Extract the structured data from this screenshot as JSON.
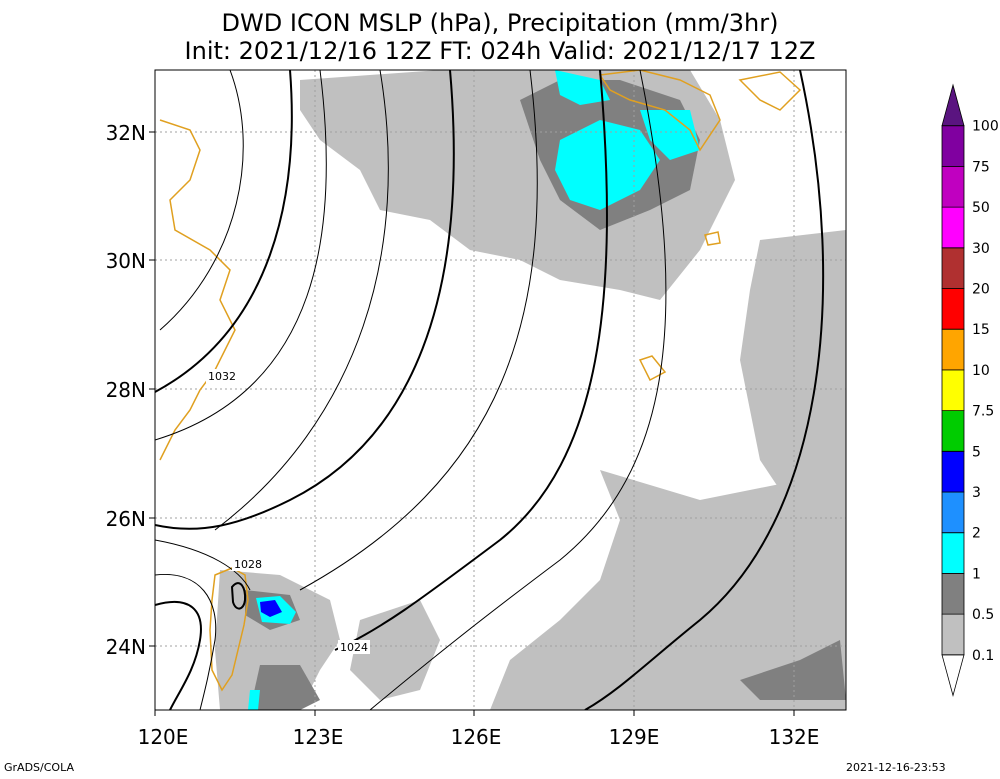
{
  "title_line1": "DWD ICON MSLP (hPa), Precipitation (mm/3hr)",
  "title_line2": "Init: 2021/12/16 12Z  FT: 024h  Valid: 2021/12/17 12Z",
  "lat_labels": [
    "32N",
    "30N",
    "28N",
    "26N",
    "24N"
  ],
  "lon_labels": [
    "120E",
    "123E",
    "126E",
    "129E",
    "132E"
  ],
  "isobar_labels": [
    "1032",
    "1028",
    "1024"
  ],
  "colorbar": {
    "labels": [
      "0.1",
      "0.5",
      "1",
      "2",
      "3",
      "5",
      "7.5",
      "10",
      "15",
      "20",
      "30",
      "50",
      "75",
      "100"
    ],
    "colors": [
      "#ffffff",
      "#c0c0c0",
      "#808080",
      "#00ffff",
      "#1e90ff",
      "#0000ff",
      "#00cc00",
      "#ffff00",
      "#ffa500",
      "#ff0000",
      "#b03030",
      "#ff00ff",
      "#c000c0",
      "#8000a0",
      "#5a1480"
    ]
  },
  "colors": {
    "coastline": "#e0a020",
    "isobar": "#000000",
    "grid": "#a0a0a0",
    "precip_light": "#c0c0c0",
    "precip_medium": "#808080",
    "precip_heavy": "#00ffff"
  },
  "footer_left": "GrADS/COLA",
  "footer_right": "2021-12-16-23:53"
}
